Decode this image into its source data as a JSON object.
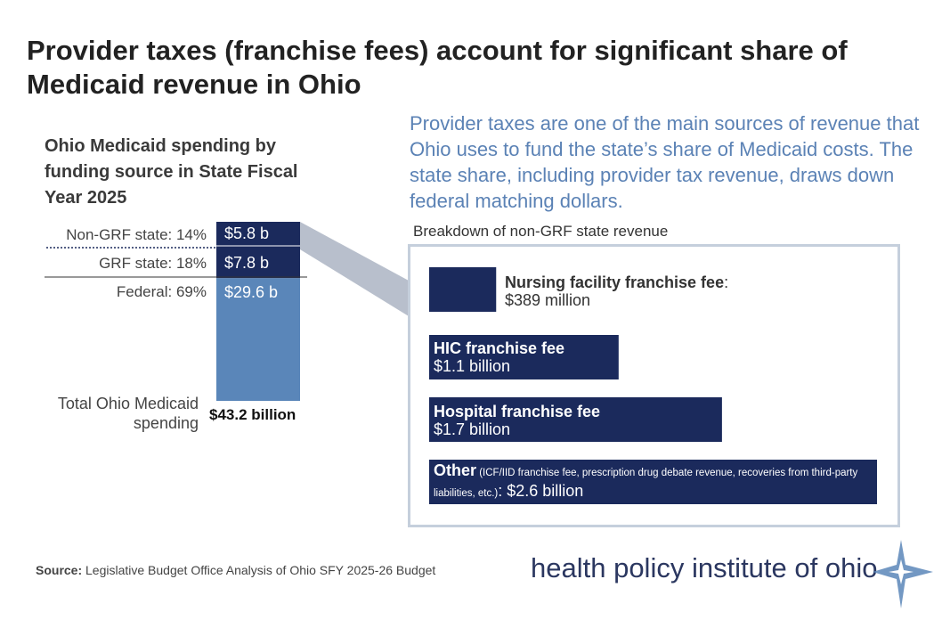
{
  "title": "Provider taxes (franchise fees) account for significant share of Medicaid revenue in Ohio",
  "subtitle": "Ohio Medicaid spending by funding source in State Fiscal Year 2025",
  "callout": "Provider taxes are one of the main sources of revenue that Ohio uses to fund the state’s share of Medicaid costs. The state share, including provider tax revenue, draws down federal matching dollars.",
  "breakdown_label": "Breakdown of non-GRF state revenue",
  "colors": {
    "navy": "#1b2a5c",
    "light_blue": "#5a86b9",
    "connector": "#b8bfcc",
    "panel_border": "#c5cfdc"
  },
  "source": {
    "label": "Source:",
    "text": " Legislative Budget Office Analysis of Ohio SFY 2025-26 Budget"
  },
  "logo": {
    "text": "health policy institute of ohio",
    "icon": "compass-star-icon"
  },
  "chart_data": [
    {
      "type": "bar",
      "stacked": true,
      "title": "Ohio Medicaid spending by funding source in State Fiscal Year 2025",
      "unit": "billion $",
      "segments": [
        {
          "name": "Non-GRF state",
          "percent_label": "Non-GRF state: 14%",
          "value": 5.8,
          "value_label": "$5.8 b",
          "color": "#1b2a5c"
        },
        {
          "name": "GRF state",
          "percent_label": "GRF state: 18%",
          "value": 7.8,
          "value_label": "$7.8 b",
          "color": "#1b2a5c"
        },
        {
          "name": "Federal",
          "percent_label": "Federal: 69%",
          "value": 29.6,
          "value_label": "$29.6 b",
          "color": "#5a86b9"
        }
      ],
      "total": {
        "label": "Total Ohio Medicaid spending",
        "value": 43.2,
        "value_label": "$43.2 billion"
      }
    },
    {
      "type": "bar",
      "orientation": "horizontal",
      "title": "Breakdown of non-GRF state revenue",
      "unit": "million $",
      "bars": [
        {
          "name": "Nursing facility franchise fee",
          "value": 389,
          "label_bold": "Nursing facility franchise fee",
          "label_value": ": $389 million",
          "label_outside": true
        },
        {
          "name": "HIC franchise fee",
          "value": 1100,
          "label_bold": "HIC franchise fee",
          "label_value": "$1.1 billion",
          "label_outside": false
        },
        {
          "name": "Hospital franchise fee",
          "value": 1700,
          "label_bold": "Hospital franchise fee",
          "label_value": "$1.7 billion",
          "label_outside": false
        },
        {
          "name": "Other",
          "value": 2600,
          "label_bold": "Other",
          "label_note": " (ICF/IID franchise fee, prescription drug debate revenue, recoveries from third-party liabilities, etc.)",
          "label_value": ": $2.6 billion",
          "label_outside": false
        }
      ]
    }
  ]
}
